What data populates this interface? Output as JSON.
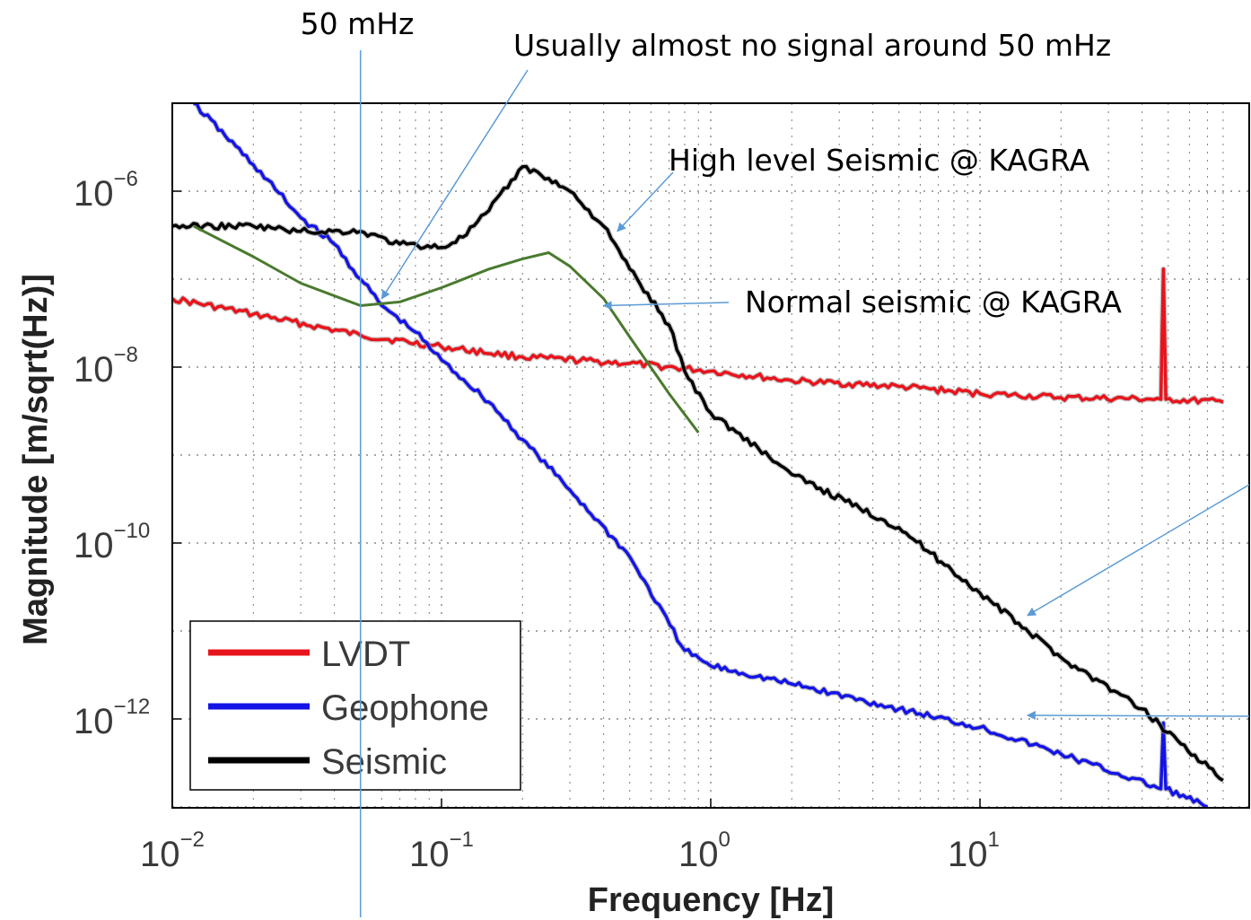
{
  "chart_data": {
    "type": "line",
    "xscale": "log",
    "yscale": "log",
    "xlim": [
      0.01,
      80
    ],
    "ylim": [
      1e-13,
      1e-05
    ],
    "grid": true,
    "xlabel": "Frequency [Hz]",
    "ylabel": "Magnitude [m/sqrt(Hz)]",
    "x_ticks": [
      {
        "base": "10",
        "exp": "−2"
      },
      {
        "base": "10",
        "exp": "−1"
      },
      {
        "base": "10",
        "exp": "0"
      },
      {
        "base": "10",
        "exp": "1"
      }
    ],
    "y_ticks": [
      {
        "base": "10",
        "exp": "−6"
      },
      {
        "base": "10",
        "exp": "−8"
      },
      {
        "base": "10",
        "exp": "−10"
      },
      {
        "base": "10",
        "exp": "−12"
      }
    ],
    "legend": {
      "position": "bottom-left",
      "entries": [
        {
          "name": "LVDT",
          "color": "#e8141c"
        },
        {
          "name": "Geophone",
          "color": "#1414e6"
        },
        {
          "name": "Seismic",
          "color": "#000000"
        }
      ]
    },
    "series": [
      {
        "name": "LVDT",
        "color": "#e8141c",
        "points": [
          [
            0.01,
            6e-08
          ],
          [
            0.02,
            4e-08
          ],
          [
            0.05,
            2.3e-08
          ],
          [
            0.1,
            1.7e-08
          ],
          [
            0.2,
            1.3e-08
          ],
          [
            0.5,
            1.1e-08
          ],
          [
            1,
            9e-09
          ],
          [
            2,
            7e-09
          ],
          [
            5,
            6e-09
          ],
          [
            10,
            5e-09
          ],
          [
            20,
            4.5e-09
          ],
          [
            47,
            4.3e-09
          ],
          [
            48,
            1.3e-07
          ],
          [
            49,
            4.3e-09
          ],
          [
            80,
            4e-09
          ]
        ]
      },
      {
        "name": "Geophone",
        "color": "#1414e6",
        "points": [
          [
            0.012,
            1e-05
          ],
          [
            0.02,
            2e-06
          ],
          [
            0.03,
            5e-07
          ],
          [
            0.04,
            2.5e-07
          ],
          [
            0.05,
            1e-07
          ],
          [
            0.06,
            5e-08
          ],
          [
            0.08,
            2.5e-08
          ],
          [
            0.1,
            1.2e-08
          ],
          [
            0.15,
            4e-09
          ],
          [
            0.2,
            1.5e-09
          ],
          [
            0.3,
            4e-10
          ],
          [
            0.5,
            7e-11
          ],
          [
            0.8,
            6e-12
          ],
          [
            1,
            4e-12
          ],
          [
            2,
            2.5e-12
          ],
          [
            5,
            1.3e-12
          ],
          [
            10,
            8e-13
          ],
          [
            20,
            4e-13
          ],
          [
            47,
            1.6e-13
          ],
          [
            48,
            9e-13
          ],
          [
            49,
            1.6e-13
          ],
          [
            70,
            1e-13
          ]
        ]
      },
      {
        "name": "Seismic",
        "color": "#000000",
        "points": [
          [
            0.01,
            4e-07
          ],
          [
            0.02,
            4e-07
          ],
          [
            0.03,
            3.5e-07
          ],
          [
            0.05,
            3.5e-07
          ],
          [
            0.07,
            2.5e-07
          ],
          [
            0.1,
            2.3e-07
          ],
          [
            0.12,
            3e-07
          ],
          [
            0.15,
            6e-07
          ],
          [
            0.2,
            1.9e-06
          ],
          [
            0.25,
            1.4e-06
          ],
          [
            0.3,
            1e-06
          ],
          [
            0.4,
            4e-07
          ],
          [
            0.5,
            1.3e-07
          ],
          [
            0.7,
            3e-08
          ],
          [
            0.8,
            9e-09
          ],
          [
            1,
            3e-09
          ],
          [
            1.5,
            1.2e-09
          ],
          [
            2,
            6e-10
          ],
          [
            5,
            1.5e-10
          ],
          [
            10,
            2.7e-11
          ],
          [
            20,
            5e-12
          ],
          [
            40,
            1.3e-12
          ],
          [
            80,
            2e-13
          ]
        ]
      },
      {
        "color": "#4a7a2e",
        "points": [
          [
            0.012,
            4e-07
          ],
          [
            0.02,
            1.8e-07
          ],
          [
            0.03,
            9e-08
          ],
          [
            0.05,
            5e-08
          ],
          [
            0.07,
            5.5e-08
          ],
          [
            0.1,
            8e-08
          ],
          [
            0.15,
            1.3e-07
          ],
          [
            0.2,
            1.7e-07
          ],
          [
            0.25,
            2e-07
          ],
          [
            0.3,
            1.4e-07
          ],
          [
            0.4,
            6e-08
          ],
          [
            0.5,
            2.2e-08
          ],
          [
            0.7,
            5e-09
          ],
          [
            0.9,
            1.8e-09
          ]
        ]
      }
    ],
    "annotations": [
      {
        "id": "mhz50",
        "text": "50 mHz",
        "vline_x": 0.05
      },
      {
        "id": "nosignal",
        "text": "Usually almost no signal around 50 mHz",
        "points_to": [
          0.06,
          6e-08
        ]
      },
      {
        "id": "highlevel",
        "text": "High level Seismic @ KAGRA",
        "points_to": [
          0.45,
          3.5e-07
        ]
      },
      {
        "id": "normal",
        "text": "Normal seismic @ KAGRA",
        "points_to": [
          0.4,
          5e-08
        ]
      },
      {
        "id": "arrow_seismic",
        "text": "",
        "points_to": [
          15,
          1.5e-11
        ]
      },
      {
        "id": "arrow_geophone",
        "text": "",
        "points_to": [
          15,
          1.1e-12
        ]
      }
    ],
    "annotation_color": "#5b9bd5"
  }
}
